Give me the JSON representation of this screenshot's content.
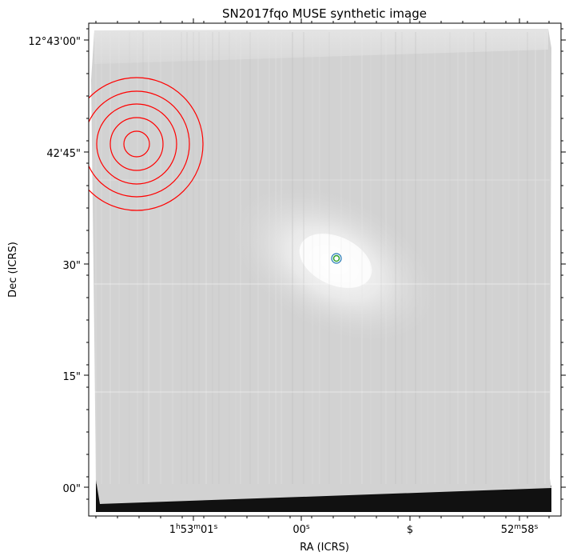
{
  "chart_data": {
    "type": "image",
    "title": "SN2017fqo MUSE synthetic image",
    "xlabel": "RA (ICRS)",
    "ylabel": "Dec (ICRS)",
    "x_ticks": [
      {
        "label": "1h53m01s",
        "main": "1",
        "sup1": "h",
        "mid": "53",
        "sup2": "m",
        "tail": "01",
        "sup3": "s"
      },
      {
        "label": "00s",
        "main": "00",
        "sup1": "s"
      },
      {
        "label": "$",
        "main": "$"
      },
      {
        "label": "52m58s",
        "main": "52",
        "sup1": "m",
        "mid": "58",
        "sup2": "s"
      }
    ],
    "y_ticks": [
      "12°43'00\"",
      "42'45\"",
      "30\"",
      "15\"",
      "00\""
    ],
    "image_colormap": "gray",
    "markers": [
      {
        "name": "concentric red circles",
        "color": "#ff0000",
        "count": 5
      },
      {
        "name": "SN position",
        "colors": [
          "#1f77b4",
          "#2ca02c"
        ]
      }
    ]
  }
}
